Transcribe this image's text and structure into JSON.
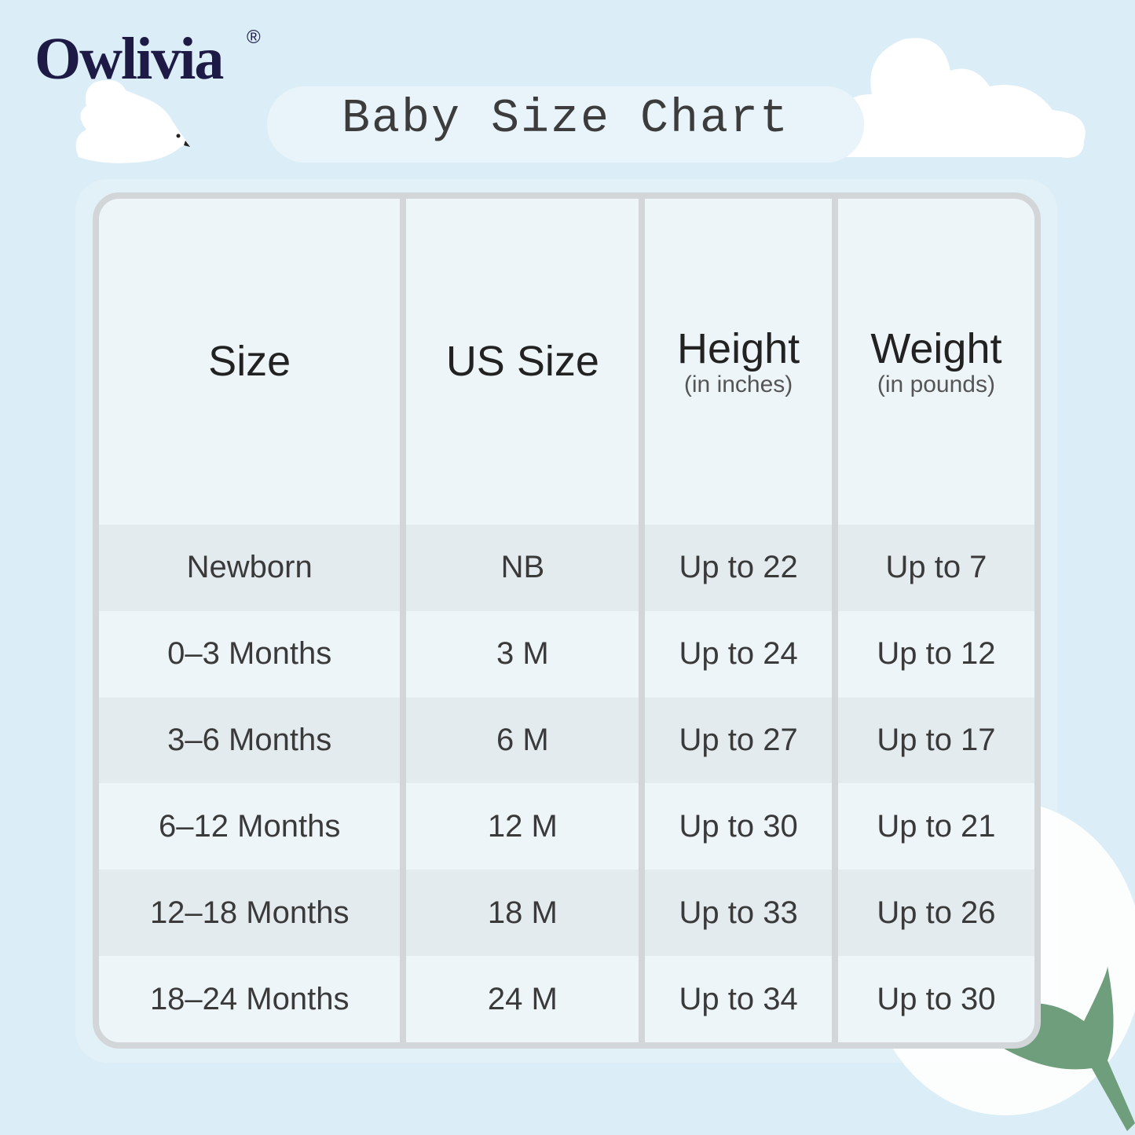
{
  "brand": {
    "logo_text": "Owlivia",
    "registered_mark": "®"
  },
  "title": "Baby Size Chart",
  "table": {
    "headers": [
      {
        "label": "Size",
        "sub": ""
      },
      {
        "label": "US Size",
        "sub": ""
      },
      {
        "label": "Height",
        "sub": "(in inches)"
      },
      {
        "label": "Weight",
        "sub": "(in pounds)"
      }
    ],
    "rows": [
      [
        "Newborn",
        "NB",
        "Up to 22",
        "Up to 7"
      ],
      [
        "0–3 Months",
        "3 M",
        "Up to 24",
        "Up to 12"
      ],
      [
        "3–6 Months",
        "6 M",
        "Up to 27",
        "Up to 17"
      ],
      [
        "6–12 Months",
        "12 M",
        "Up to 30",
        "Up to 21"
      ],
      [
        "12–18 Months",
        "18 M",
        "Up to 33",
        "Up to 26"
      ],
      [
        "18–24 Months",
        "24 M",
        "Up to 34",
        "Up to 30"
      ]
    ]
  },
  "colors": {
    "background": "#dbedf6",
    "logo": "#1d1a45",
    "border": "#d2d6d9"
  }
}
